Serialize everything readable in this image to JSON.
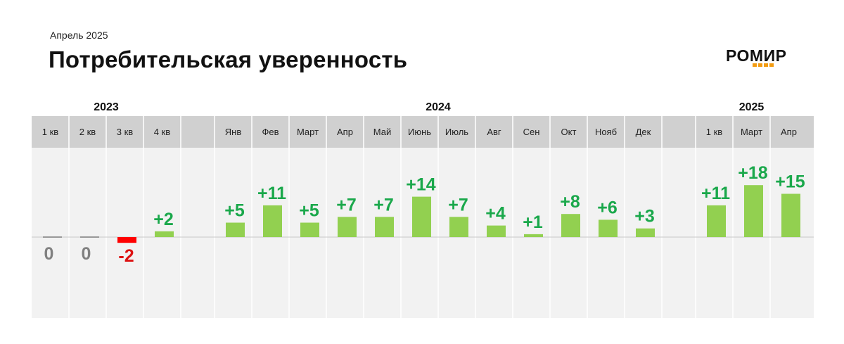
{
  "header": {
    "subtitle": "Апрель 2025",
    "title": "Потребительская уверенность",
    "logo_text": "РОМИР"
  },
  "colors": {
    "positive_bar": "#92d050",
    "positive_label": "#1aa84b",
    "negative_bar": "#ff0000",
    "negative_label": "#dd1111",
    "zero_label": "#808080",
    "header_row": "#d0d0d0",
    "panel": "#f2f2f2",
    "logo_accent": "#f39c12"
  },
  "chart_data": {
    "type": "bar",
    "year_groups": [
      {
        "label": "2023",
        "categories": [
          "1 кв",
          "2 кв",
          "3 кв",
          "4 кв"
        ],
        "values": [
          0,
          0,
          -2,
          2
        ],
        "labels": [
          "0",
          "0",
          "-2",
          "+2"
        ]
      },
      {
        "label": "2024",
        "categories": [
          "Янв",
          "Фев",
          "Март",
          "Апр",
          "Май",
          "Июнь",
          "Июль",
          "Авг",
          "Сен",
          "Окт",
          "Нояб",
          "Дек"
        ],
        "values": [
          5,
          11,
          5,
          7,
          7,
          14,
          7,
          4,
          1,
          8,
          6,
          3
        ],
        "labels": [
          "+5",
          "+11",
          "+5",
          "+7",
          "+7",
          "+14",
          "+7",
          "+4",
          "+1",
          "+8",
          "+6",
          "+3"
        ]
      },
      {
        "label": "2025",
        "categories": [
          "1 кв",
          "Март",
          "Апр"
        ],
        "values": [
          11,
          18,
          15
        ],
        "labels": [
          "+11",
          "+18",
          "+15"
        ]
      }
    ],
    "ylim": [
      -2,
      18
    ],
    "grid": false,
    "legend": "none"
  }
}
